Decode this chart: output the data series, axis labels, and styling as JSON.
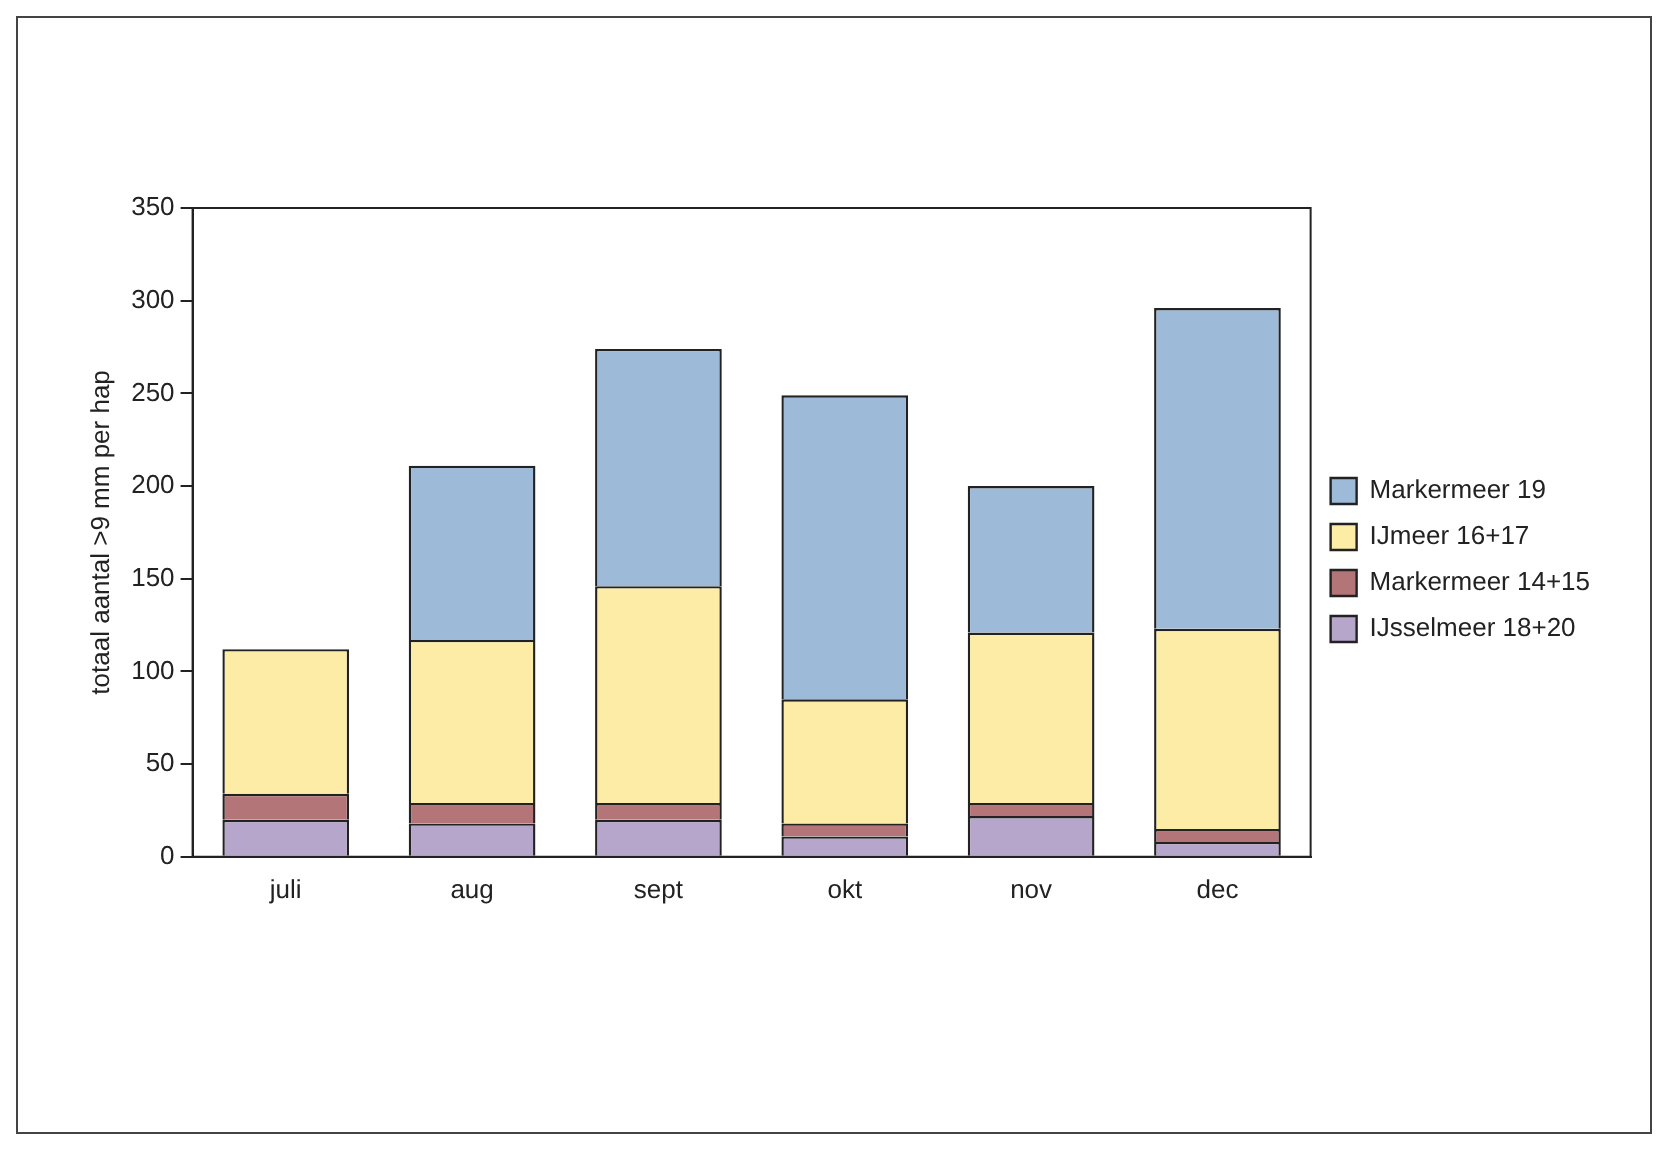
{
  "chart_data": {
    "type": "bar",
    "ylabel": "totaal aantal >9 mm per hap",
    "categories": [
      "juli",
      "aug",
      "sept",
      "okt",
      "nov",
      "dec"
    ],
    "stacked": true,
    "ylim": [
      0,
      350
    ],
    "yticks": [
      0,
      50,
      100,
      150,
      200,
      250,
      300,
      350
    ],
    "grid": false,
    "legend": "right",
    "series": [
      {
        "name": "IJsselmeer 18+20",
        "color": "#b7a6cc",
        "values": [
          20,
          18,
          20,
          11,
          22,
          8
        ]
      },
      {
        "name": "Markermeer 14+15",
        "color": "#b47579",
        "values": [
          14,
          11,
          9,
          7,
          7,
          7
        ]
      },
      {
        "name": "IJmeer 16+17",
        "color": "#fdeca6",
        "values": [
          78,
          88,
          117,
          67,
          92,
          108
        ]
      },
      {
        "name": "Markermeer 19",
        "color": "#9dbbd8",
        "values": [
          0,
          94,
          128,
          164,
          79,
          173
        ]
      }
    ]
  }
}
